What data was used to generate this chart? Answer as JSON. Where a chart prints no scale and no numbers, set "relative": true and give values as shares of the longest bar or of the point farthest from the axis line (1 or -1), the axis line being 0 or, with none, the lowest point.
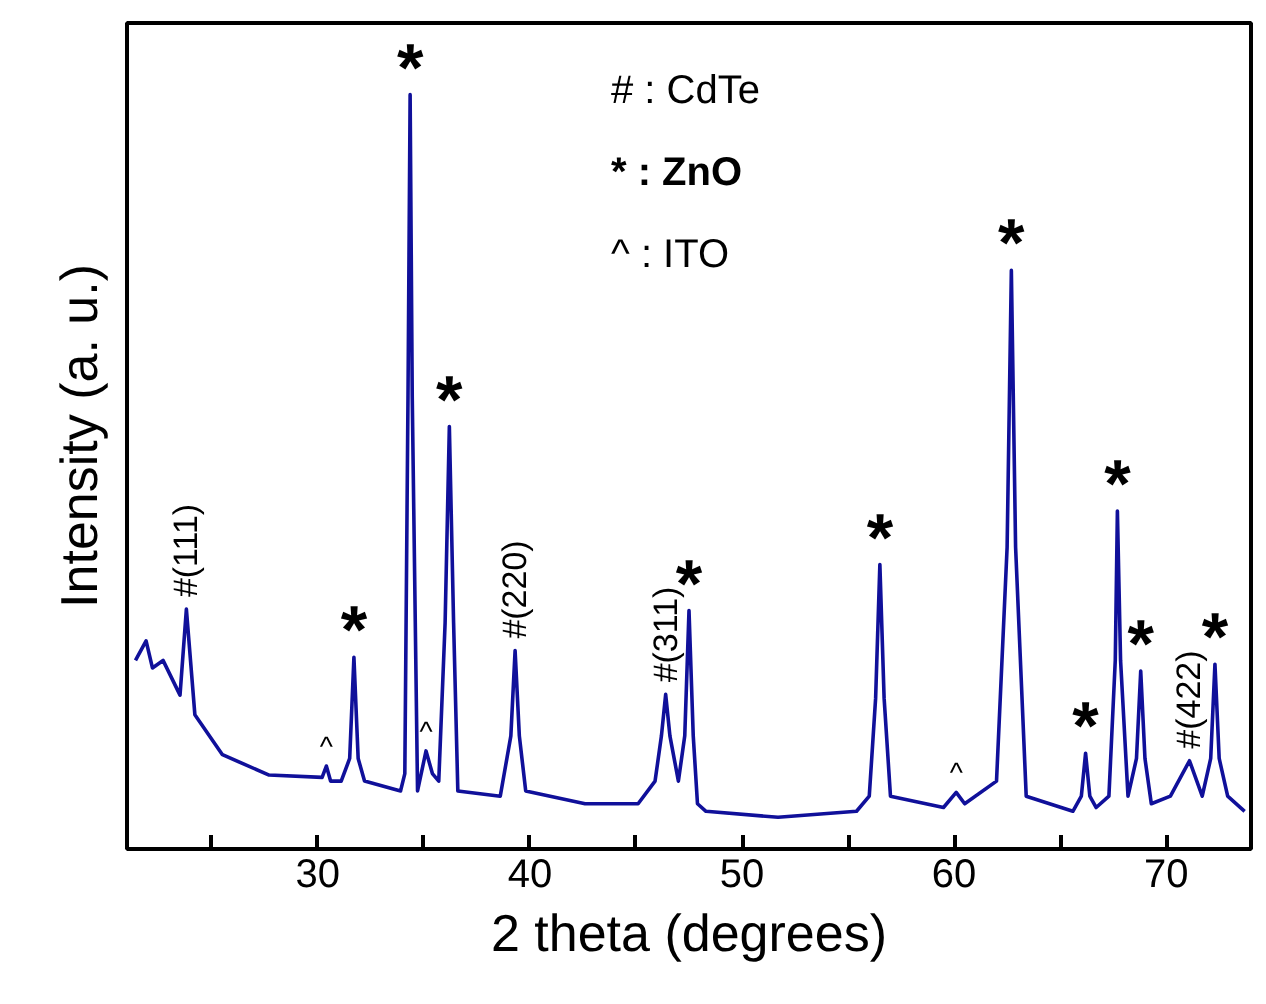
{
  "chart_data": {
    "type": "line",
    "xlabel": "2 theta (degrees)",
    "ylabel": "Intensity (a. u.)",
    "relative": true,
    "tick_labels": "x",
    "grid": false,
    "marker": "none",
    "line_style": "solid",
    "xlim": [
      21,
      74
    ],
    "xticks": [
      {
        "value": 25,
        "label": null
      },
      30,
      {
        "value": 35,
        "label": null
      },
      40,
      {
        "value": 45,
        "label": null
      },
      50,
      {
        "value": 55,
        "label": null
      },
      60,
      {
        "value": 65,
        "label": null
      },
      70
    ],
    "series": [
      {
        "color": "#10109a",
        "x": [
          21.4,
          21.9,
          22.2,
          22.7,
          23.5,
          23.8,
          24.2,
          25.5,
          27.7,
          30.2,
          30.4,
          30.6,
          31.1,
          31.5,
          31.7,
          31.9,
          32.2,
          33.9,
          34.1,
          34.25,
          34.35,
          34.45,
          34.7,
          35.1,
          35.4,
          35.7,
          36.0,
          36.2,
          36.4,
          36.6,
          38.6,
          39.1,
          39.3,
          39.5,
          39.8,
          42.6,
          45.1,
          45.9,
          46.2,
          46.4,
          46.6,
          47.0,
          47.3,
          47.5,
          47.7,
          47.9,
          48.3,
          51.7,
          55.4,
          56.0,
          56.3,
          56.5,
          56.7,
          57.0,
          59.5,
          60.1,
          60.5,
          62.0,
          62.5,
          62.7,
          62.9,
          63.4,
          65.6,
          66.0,
          66.2,
          66.4,
          66.7,
          67.3,
          67.6,
          67.7,
          67.85,
          68.2,
          68.6,
          68.8,
          69.0,
          69.3,
          70.2,
          71.1,
          71.7,
          72.1,
          72.3,
          72.5,
          72.9,
          73.7
        ],
        "values": [
          0.25,
          0.276,
          0.24,
          0.25,
          0.204,
          0.318,
          0.178,
          0.125,
          0.098,
          0.095,
          0.11,
          0.09,
          0.09,
          0.12,
          0.254,
          0.12,
          0.09,
          0.077,
          0.1,
          0.6,
          1.0,
          0.6,
          0.077,
          0.13,
          0.1,
          0.09,
          0.3,
          0.56,
          0.3,
          0.077,
          0.07,
          0.15,
          0.263,
          0.15,
          0.077,
          0.06,
          0.06,
          0.09,
          0.15,
          0.205,
          0.15,
          0.09,
          0.15,
          0.316,
          0.15,
          0.06,
          0.05,
          0.042,
          0.05,
          0.07,
          0.2,
          0.377,
          0.2,
          0.07,
          0.055,
          0.075,
          0.06,
          0.09,
          0.4,
          0.767,
          0.4,
          0.07,
          0.05,
          0.07,
          0.127,
          0.07,
          0.055,
          0.07,
          0.25,
          0.448,
          0.25,
          0.07,
          0.12,
          0.236,
          0.12,
          0.06,
          0.07,
          0.117,
          0.07,
          0.12,
          0.245,
          0.12,
          0.07,
          0.05
        ]
      }
    ],
    "annotations": [
      "# : CdTe",
      "* : ZnO",
      "^ :  ITO",
      {
        "text": "#(111)",
        "x": 23.8,
        "y": 0.318
      },
      {
        "text": "#(220)",
        "x": 39.3,
        "y": 0.263
      },
      {
        "text": "#(311)",
        "x": 46.4,
        "y": 0.205
      },
      {
        "text": "#(422)",
        "x": 71.1,
        "y": 0.117
      },
      {
        "text": "*",
        "x": 31.7,
        "y": 0.254
      },
      {
        "text": "*",
        "x": 34.35,
        "y": 1.0
      },
      {
        "text": "*",
        "x": 36.2,
        "y": 0.56
      },
      {
        "text": "*",
        "x": 47.5,
        "y": 0.316
      },
      {
        "text": "*",
        "x": 56.5,
        "y": 0.377
      },
      {
        "text": "*",
        "x": 62.7,
        "y": 0.767
      },
      {
        "text": "*",
        "x": 66.2,
        "y": 0.127
      },
      {
        "text": "*",
        "x": 67.7,
        "y": 0.448
      },
      {
        "text": "*",
        "x": 68.8,
        "y": 0.236
      },
      {
        "text": "*",
        "x": 72.3,
        "y": 0.245
      },
      {
        "text": "^",
        "x": 30.4,
        "y": 0.11
      },
      {
        "text": "^",
        "x": 35.1,
        "y": 0.13
      },
      {
        "text": "^",
        "x": 60.1,
        "y": 0.075
      }
    ]
  }
}
